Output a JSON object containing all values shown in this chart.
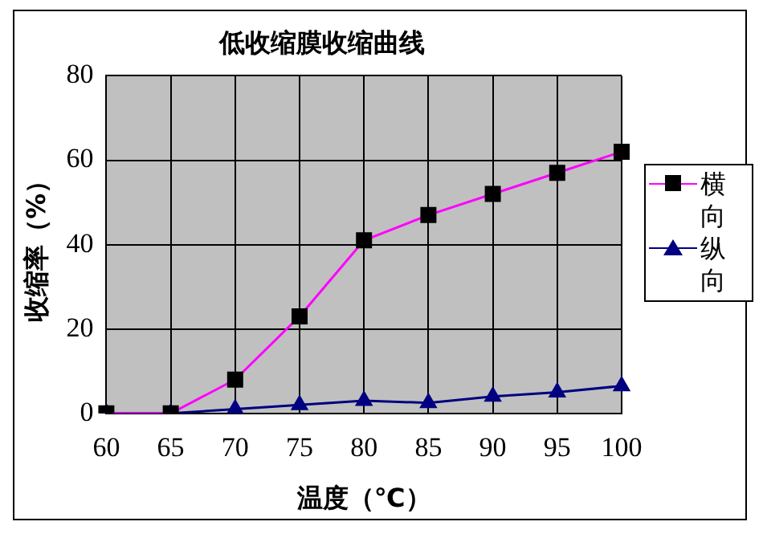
{
  "chart_data": {
    "type": "line",
    "title": "低收缩膜收缩曲线",
    "xlabel": "温度（℃）",
    "ylabel": "收缩率（%）",
    "categories": [
      "60",
      "65",
      "70",
      "75",
      "80",
      "85",
      "90",
      "95",
      "100"
    ],
    "series": [
      {
        "name": "横向",
        "color": "#ff00ff",
        "marker": "square",
        "values": [
          0,
          0,
          8,
          23,
          41,
          47,
          52,
          57,
          62
        ]
      },
      {
        "name": "纵向",
        "color": "#000080",
        "marker": "triangle",
        "values": [
          0,
          0,
          1,
          2,
          3,
          2.5,
          4,
          5,
          6.5
        ]
      }
    ],
    "ylim": [
      0,
      80
    ],
    "yticks": [
      0,
      20,
      40,
      60,
      80
    ],
    "grid": true,
    "legend": "right",
    "line_style": "solid"
  }
}
